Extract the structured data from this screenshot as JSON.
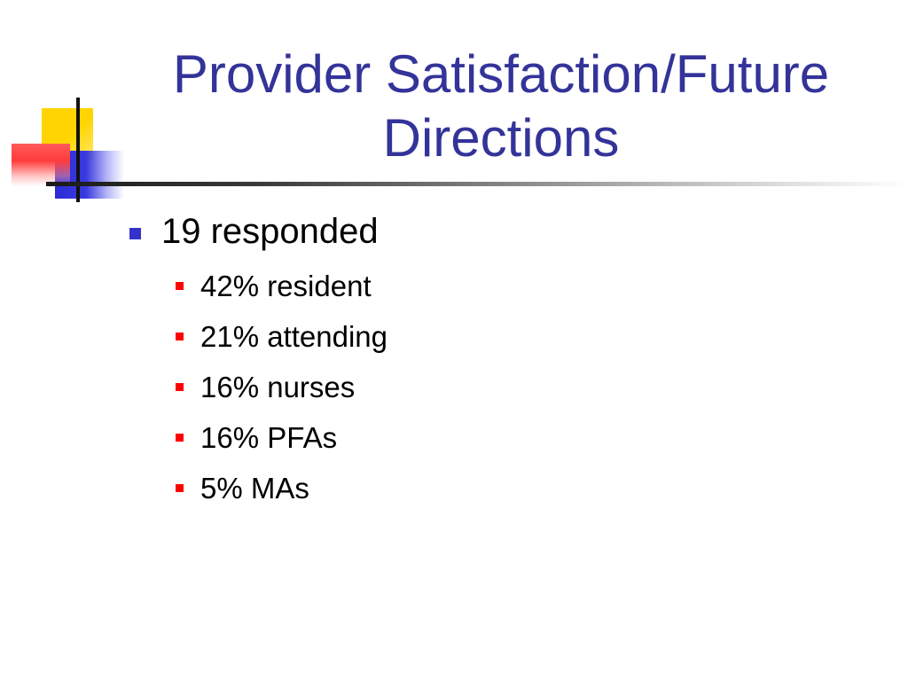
{
  "slide": {
    "title_line1": "Provider Satisfaction/Future",
    "title_line2": "Directions",
    "main_bullet": "19 responded",
    "sub_bullets": [
      "42% resident",
      "21% attending",
      "16% nurses",
      "16% PFAs",
      "5% MAs"
    ]
  },
  "colors": {
    "title": "#333399",
    "main_bullet_marker": "#3333cc",
    "sub_bullet_marker": "#ff0000",
    "deco_yellow": "#ffd400",
    "deco_blue": "#2b2bd6",
    "deco_red": "#ff3b3b"
  }
}
